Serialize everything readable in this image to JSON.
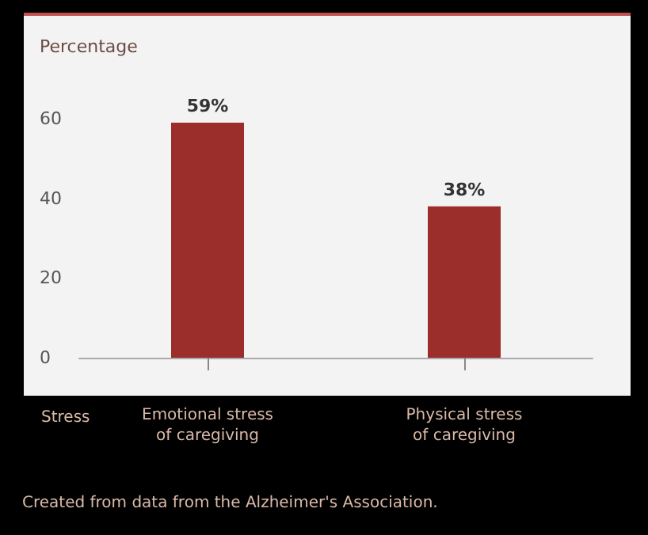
{
  "chart_data": {
    "type": "bar",
    "ylabel": "Percentage",
    "xlabel": "Stress",
    "categories": [
      "Emotional stress\nof caregiving",
      "Physical stress\nof caregiving"
    ],
    "values": [
      59,
      38
    ],
    "color": "#9b2d2a",
    "value_labels": [
      "59%",
      "38%"
    ],
    "ylim": [
      0,
      60
    ],
    "yticks": [
      0,
      20,
      40,
      60
    ],
    "grid": false,
    "annotations": [
      "Created from data from the Alzheimer's Association."
    ]
  }
}
